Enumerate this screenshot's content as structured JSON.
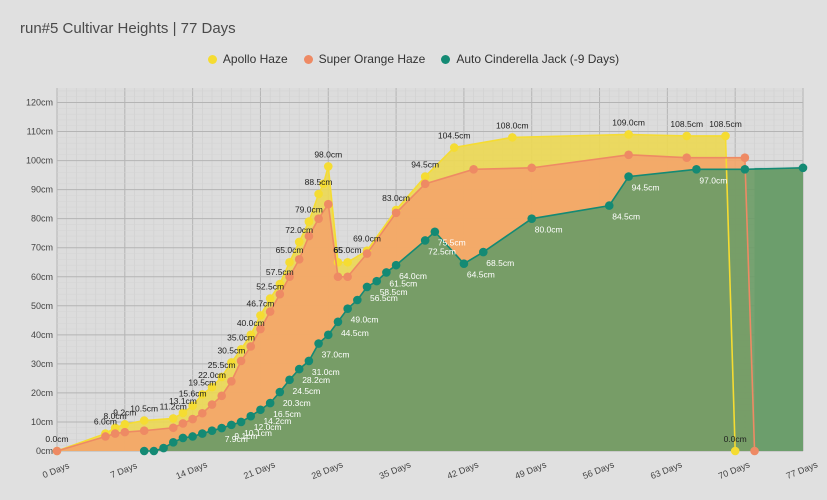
{
  "title": "run#5 Cultivar Heights | 77 Days",
  "chart_data": {
    "type": "area",
    "title": "run#5 Cultivar Heights | 77 Days",
    "xlabel": "",
    "ylabel": "",
    "xlim": [
      0,
      77
    ],
    "ylim": [
      0,
      125
    ],
    "grid": true,
    "legend_position": "top",
    "x_ticks": [
      "0 Days",
      "7 Days",
      "14 Days",
      "21 Days",
      "28 Days",
      "35 Days",
      "42 Days",
      "49 Days",
      "56 Days",
      "63 Days",
      "70 Days",
      "77 Days"
    ],
    "y_ticks": [
      "0cm",
      "10cm",
      "20cm",
      "30cm",
      "40cm",
      "50cm",
      "60cm",
      "70cm",
      "80cm",
      "90cm",
      "100cm",
      "110cm",
      "120cm"
    ],
    "series": [
      {
        "name": "Apollo Haze",
        "color": "#f5dc32",
        "fill": "#ecd855",
        "points": [
          [
            0,
            0
          ],
          [
            5,
            6
          ],
          [
            6,
            8
          ],
          [
            7,
            9.2
          ],
          [
            9,
            10.5
          ],
          [
            12,
            11.2
          ],
          [
            13,
            13.1
          ],
          [
            14,
            15.6
          ],
          [
            15,
            19.5
          ],
          [
            16,
            22
          ],
          [
            17,
            25.5
          ],
          [
            18,
            30.5
          ],
          [
            19,
            35
          ],
          [
            20,
            40
          ],
          [
            21,
            46.7
          ],
          [
            22,
            52.5
          ],
          [
            23,
            57.5
          ],
          [
            24,
            65
          ],
          [
            25,
            72
          ],
          [
            26,
            79
          ],
          [
            27,
            88.5
          ],
          [
            27.5,
            92
          ],
          [
            28,
            98
          ],
          [
            29,
            65
          ],
          [
            30,
            65
          ],
          [
            32,
            69
          ],
          [
            35,
            83
          ],
          [
            38,
            94.5
          ],
          [
            41,
            104.5
          ],
          [
            47,
            108
          ],
          [
            59,
            109
          ],
          [
            65,
            108.5
          ],
          [
            69,
            108.5
          ],
          [
            70,
            0
          ]
        ],
        "labels": [
          [
            0,
            "0.0cm"
          ],
          [
            5,
            "6.0cm"
          ],
          [
            6,
            "8.0cm"
          ],
          [
            7,
            "9.2cm"
          ],
          [
            9,
            "10.5cm"
          ],
          [
            12,
            "11.2cm"
          ],
          [
            13,
            "13.1cm"
          ],
          [
            14,
            "15.6cm"
          ],
          [
            15,
            "19.5cm"
          ],
          [
            16,
            "22.0cm"
          ],
          [
            17,
            "25.5cm"
          ],
          [
            18,
            "30.5cm"
          ],
          [
            19,
            "35.0cm"
          ],
          [
            20,
            "40.0cm"
          ],
          [
            21,
            "46.7cm"
          ],
          [
            22,
            "52.5cm"
          ],
          [
            23,
            "57.5cm"
          ],
          [
            24,
            "65.0cm"
          ],
          [
            25,
            "72.0cm"
          ],
          [
            26,
            "79.0cm"
          ],
          [
            27,
            "88.5cm"
          ],
          [
            28,
            "98.0cm"
          ],
          [
            29,
            "65"
          ],
          [
            30,
            "65.0cm"
          ],
          [
            32,
            "69.0cm"
          ],
          [
            35,
            "83.0cm"
          ],
          [
            38,
            "94.5cm"
          ],
          [
            41,
            "104.5cm"
          ],
          [
            47,
            "108.0cm"
          ],
          [
            59,
            "109.0cm"
          ],
          [
            65,
            "108.5cm"
          ],
          [
            69,
            "108.5cm"
          ],
          [
            70,
            "0.0cm"
          ]
        ]
      },
      {
        "name": "Super Orange Haze",
        "color": "#ee8a64",
        "fill": "#f3a66a",
        "points": [
          [
            0,
            0
          ],
          [
            5,
            5
          ],
          [
            6,
            6
          ],
          [
            7,
            6.5
          ],
          [
            9,
            7
          ],
          [
            12,
            8
          ],
          [
            13,
            9.5
          ],
          [
            14,
            11
          ],
          [
            15,
            13
          ],
          [
            16,
            16
          ],
          [
            17,
            19
          ],
          [
            18,
            24
          ],
          [
            19,
            31
          ],
          [
            20,
            36
          ],
          [
            21,
            42
          ],
          [
            22,
            48
          ],
          [
            23,
            54
          ],
          [
            24,
            60
          ],
          [
            25,
            66
          ],
          [
            26,
            74
          ],
          [
            27,
            80
          ],
          [
            28,
            85
          ],
          [
            29,
            60
          ],
          [
            30,
            60
          ],
          [
            32,
            68
          ],
          [
            35,
            82
          ],
          [
            38,
            92
          ],
          [
            43,
            97
          ],
          [
            49,
            97.5
          ],
          [
            59,
            102
          ],
          [
            65,
            101
          ],
          [
            71,
            101
          ],
          [
            72,
            0
          ]
        ],
        "labels": []
      },
      {
        "name": "Auto Cinderella Jack (-9 Days)",
        "color": "#148a74",
        "fill": "#6d9c67",
        "points": [
          [
            9,
            0
          ],
          [
            10,
            0
          ],
          [
            11,
            1
          ],
          [
            12,
            3
          ],
          [
            13,
            4.5
          ],
          [
            14,
            5
          ],
          [
            15,
            6
          ],
          [
            16,
            7
          ],
          [
            17,
            7.9
          ],
          [
            18,
            9
          ],
          [
            19,
            10
          ],
          [
            20,
            12
          ],
          [
            21,
            14.2
          ],
          [
            22,
            16.5
          ],
          [
            23,
            20.3
          ],
          [
            24,
            24.5
          ],
          [
            25,
            28.2
          ],
          [
            26,
            31
          ],
          [
            27,
            37
          ],
          [
            28,
            40
          ],
          [
            29,
            44.5
          ],
          [
            30,
            49
          ],
          [
            31,
            52
          ],
          [
            32,
            56.5
          ],
          [
            33,
            58.5
          ],
          [
            34,
            61.5
          ],
          [
            35,
            64
          ],
          [
            38,
            72.5
          ],
          [
            39,
            75.5
          ],
          [
            42,
            64.5
          ],
          [
            44,
            68.5
          ],
          [
            49,
            80
          ],
          [
            57,
            84.5
          ],
          [
            59,
            94.5
          ],
          [
            66,
            97
          ],
          [
            71,
            97
          ],
          [
            77,
            97.5
          ]
        ],
        "labels": [
          [
            17,
            "7.9cm"
          ],
          [
            18,
            "9.1cm"
          ],
          [
            19,
            "10.1cm"
          ],
          [
            20,
            "12.0cm"
          ],
          [
            21,
            "14.2cm"
          ],
          [
            22,
            "16.5cm"
          ],
          [
            23,
            "20.3cm"
          ],
          [
            24,
            "24.5cm"
          ],
          [
            25,
            "28.2cm"
          ],
          [
            26,
            "31.0cm"
          ],
          [
            27,
            "37.0cm"
          ],
          [
            29,
            "44.5cm"
          ],
          [
            30,
            "49.0cm"
          ],
          [
            32,
            "56.5cm"
          ],
          [
            33,
            "58.5cm"
          ],
          [
            34,
            "61.5cm"
          ],
          [
            35,
            "64.0cm"
          ],
          [
            38,
            "72.5cm"
          ],
          [
            39,
            "75.5cm"
          ],
          [
            42,
            "64.5cm"
          ],
          [
            44,
            "68.5cm"
          ],
          [
            49,
            "80.0cm"
          ],
          [
            57,
            "84.5cm"
          ],
          [
            59,
            "94.5cm"
          ],
          [
            66,
            "97.0cm"
          ]
        ]
      }
    ],
    "trailing_fill": {
      "color": "#5fada0",
      "from_x": 72,
      "to_x": 77,
      "value": 97.5
    }
  }
}
